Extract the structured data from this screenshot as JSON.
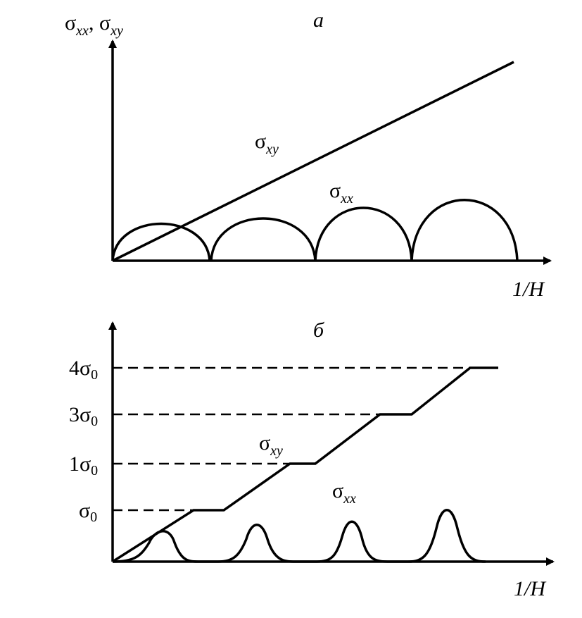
{
  "panel_a": {
    "label": "а",
    "y_axis_label": [
      {
        "base": "σ",
        "sub": "xx"
      },
      {
        "base": ", σ",
        "sub": "xy"
      }
    ],
    "x_axis_label": "1/H",
    "curve_labels": {
      "sigma_xy": {
        "base": "σ",
        "sub": "xy"
      },
      "sigma_xx": {
        "base": "σ",
        "sub": "xx"
      }
    }
  },
  "panel_b": {
    "label": "б",
    "y_levels": [
      {
        "base": "4σ",
        "sub": "0"
      },
      {
        "base": "3σ",
        "sub": "0"
      },
      {
        "base": "1σ",
        "sub": "0"
      },
      {
        "base": "σ",
        "sub": "0"
      }
    ],
    "x_axis_label": "1/H",
    "curve_labels": {
      "sigma_xy": {
        "base": "σ",
        "sub": "xy"
      },
      "sigma_xx": {
        "base": "σ",
        "sub": "xx"
      }
    }
  }
}
